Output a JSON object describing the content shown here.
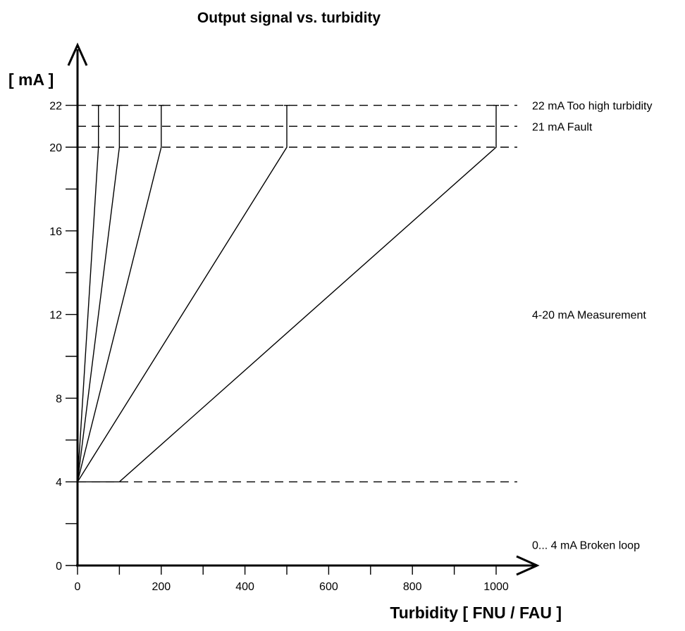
{
  "chart_data": {
    "type": "line",
    "title": "Output signal vs. turbidity",
    "xlabel": "Turbidity [ FNU / FAU ]",
    "ylabel": "[ mA ]",
    "xlim": [
      0,
      1050
    ],
    "ylim": [
      0,
      23
    ],
    "x_ticks": [
      0,
      200,
      400,
      600,
      800,
      1000
    ],
    "x_minor_ticks": [
      100,
      300,
      500,
      700,
      900
    ],
    "y_ticks": [
      0,
      4,
      8,
      12,
      16,
      20,
      22
    ],
    "y_minor_ticks": [
      2,
      6,
      10,
      14,
      18
    ],
    "grid": false,
    "reference_lines": [
      {
        "y": 22,
        "label": "22 mA Too high turbidity",
        "style": "dashed"
      },
      {
        "y": 21,
        "label": "21 mA Fault",
        "style": "dashed"
      },
      {
        "y": 20,
        "label": "",
        "style": "dashed"
      },
      {
        "y": 4,
        "label": "",
        "style": "dashed"
      }
    ],
    "series": [
      {
        "points": [
          [
            0,
            4
          ],
          [
            50,
            20
          ],
          [
            50,
            22
          ]
        ]
      },
      {
        "points": [
          [
            0,
            4
          ],
          [
            100,
            20
          ],
          [
            100,
            22
          ]
        ]
      },
      {
        "points": [
          [
            0,
            4
          ],
          [
            200,
            20
          ],
          [
            200,
            22
          ]
        ]
      },
      {
        "points": [
          [
            0,
            4
          ],
          [
            500,
            20
          ],
          [
            500,
            22
          ]
        ]
      },
      {
        "points": [
          [
            0,
            4
          ],
          [
            100,
            4
          ],
          [
            1000,
            20
          ],
          [
            1000,
            22
          ]
        ]
      }
    ],
    "region_labels": [
      {
        "y": 12,
        "label": "4-20 mA Measurement"
      },
      {
        "y": 1,
        "label": "0... 4 mA Broken loop"
      }
    ]
  }
}
